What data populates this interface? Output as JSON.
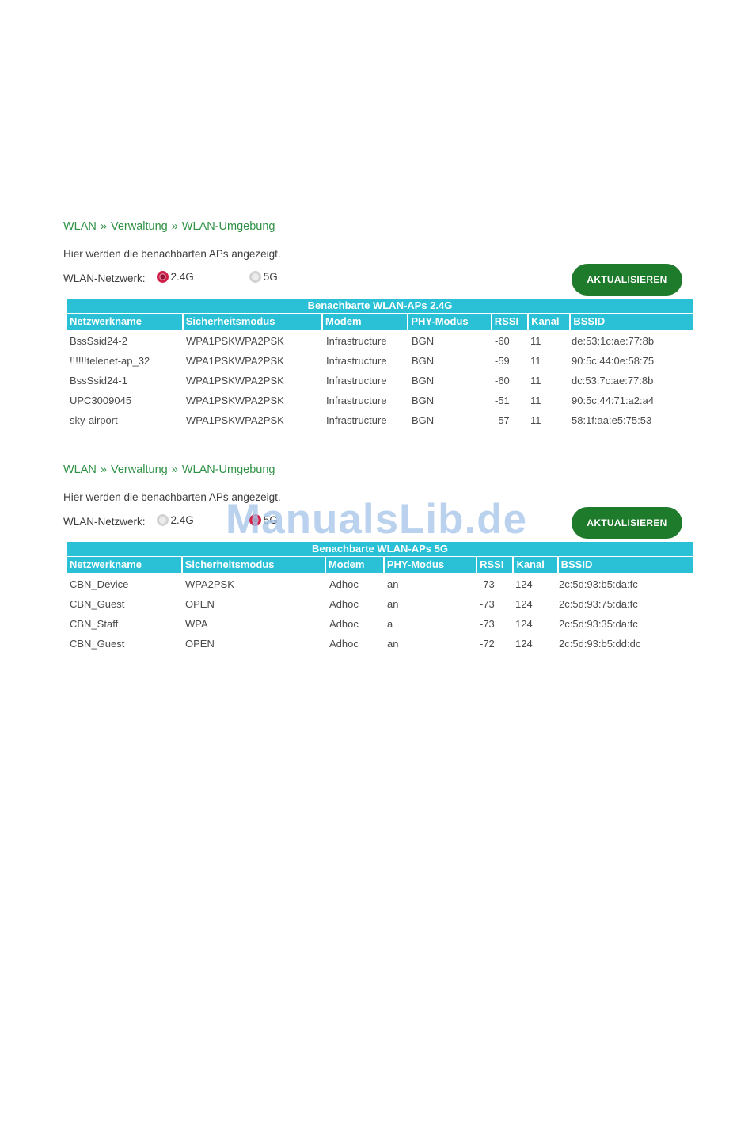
{
  "colors": {
    "accent_cyan": "#2ac0d6",
    "button_green": "#1e7b2b",
    "breadcrumb_green": "#2f9246",
    "radio_selected_red": "#d0204a",
    "watermark_blue": "#a7c5e9",
    "cell_text": "#4a4a4a"
  },
  "watermark": {
    "text": "ManualsLib.de"
  },
  "sections": [
    {
      "breadcrumb": [
        "WLAN",
        "Verwaltung",
        "WLAN-Umgebung"
      ],
      "breadcrumb_separator": "»",
      "description": "Hier werden die benachbarten APs angezeigt.",
      "network_label": "WLAN-Netzwerk:",
      "radios": [
        {
          "label": "2.4G",
          "selected": true
        },
        {
          "label": "5G",
          "selected": false
        }
      ],
      "button_label": "AKTUALISIEREN",
      "table": {
        "title": "Benachbarte WLAN-APs 2.4G",
        "columns": [
          "Netzwerkname",
          "Sicherheitsmodus",
          "Modem",
          "PHY-Modus",
          "RSSI",
          "Kanal",
          "BSSID"
        ],
        "rows": [
          [
            "BssSsid24-2",
            "WPA1PSKWPA2PSK",
            "Infrastructure",
            "BGN",
            "-60",
            "11",
            "de:53:1c:ae:77:8b"
          ],
          [
            "!!!!!!telenet-ap_32",
            "WPA1PSKWPA2PSK",
            "Infrastructure",
            "BGN",
            "-59",
            "11",
            "90:5c:44:0e:58:75"
          ],
          [
            "BssSsid24-1",
            "WPA1PSKWPA2PSK",
            "Infrastructure",
            "BGN",
            "-60",
            "11",
            "dc:53:7c:ae:77:8b"
          ],
          [
            "UPC3009045",
            "WPA1PSKWPA2PSK",
            "Infrastructure",
            "BGN",
            "-51",
            "11",
            "90:5c:44:71:a2:a4"
          ],
          [
            "sky-airport",
            "WPA1PSKWPA2PSK",
            "Infrastructure",
            "BGN",
            "-57",
            "11",
            "58:1f:aa:e5:75:53"
          ]
        ]
      }
    },
    {
      "breadcrumb": [
        "WLAN",
        "Verwaltung",
        "WLAN-Umgebung"
      ],
      "breadcrumb_separator": "»",
      "description": "Hier werden die benachbarten APs angezeigt.",
      "network_label": "WLAN-Netzwerk:",
      "radios": [
        {
          "label": "2.4G",
          "selected": false
        },
        {
          "label": "5G",
          "selected": true
        }
      ],
      "button_label": "AKTUALISIEREN",
      "table": {
        "title": "Benachbarte WLAN-APs 5G",
        "columns": [
          "Netzwerkname",
          "Sicherheitsmodus",
          "Modem",
          "PHY-Modus",
          "RSSI",
          "Kanal",
          "BSSID"
        ],
        "rows": [
          [
            "CBN_Device",
            "WPA2PSK",
            "Adhoc",
            "an",
            "-73",
            "124",
            "2c:5d:93:b5:da:fc"
          ],
          [
            "CBN_Guest",
            "OPEN",
            "Adhoc",
            "an",
            "-73",
            "124",
            "2c:5d:93:75:da:fc"
          ],
          [
            "CBN_Staff",
            "WPA",
            "Adhoc",
            "a",
            "-73",
            "124",
            "2c:5d:93:35:da:fc"
          ],
          [
            "CBN_Guest",
            "OPEN",
            "Adhoc",
            "an",
            "-72",
            "124",
            "2c:5d:93:b5:dd:dc"
          ]
        ]
      }
    }
  ]
}
